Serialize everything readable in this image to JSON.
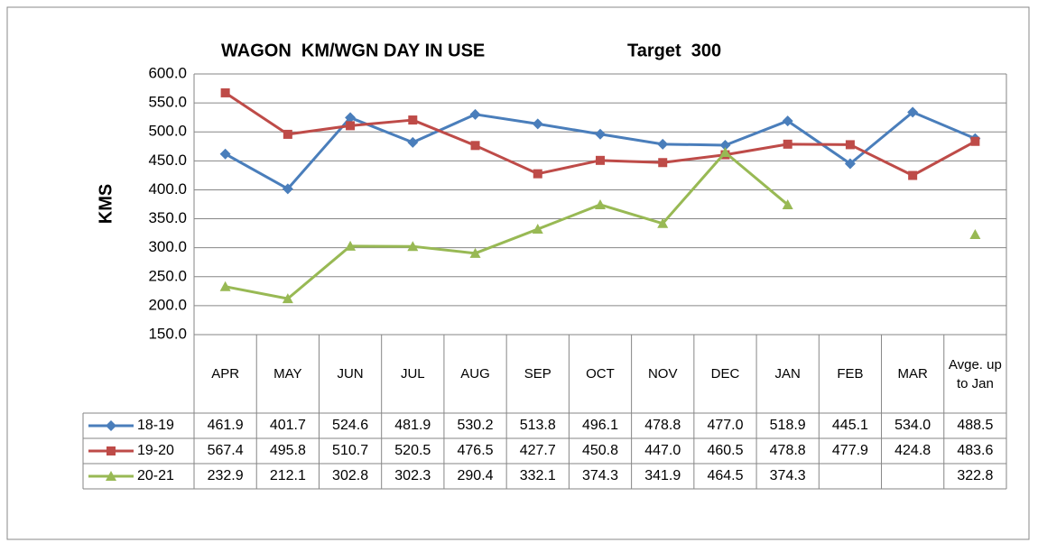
{
  "chart_data": {
    "type": "line",
    "title": "WAGON  KM/WGN DAY IN USE",
    "subtitle": "Target  300",
    "y_label": "KMS",
    "categories": [
      "APR",
      "MAY",
      "JUN",
      "JUL",
      "AUG",
      "SEP",
      "OCT",
      "NOV",
      "DEC",
      "JAN",
      "FEB",
      "MAR",
      "Avge. up to Jan"
    ],
    "ylim": [
      150,
      600
    ],
    "yticks": [
      {
        "value": 150,
        "label": "150.0"
      },
      {
        "value": 200,
        "label": "200.0"
      },
      {
        "value": 250,
        "label": "250.0"
      },
      {
        "value": 300,
        "label": "300.0"
      },
      {
        "value": 350,
        "label": "350.0"
      },
      {
        "value": 400,
        "label": "400.0"
      },
      {
        "value": 450,
        "label": "450.0"
      },
      {
        "value": 500,
        "label": "500.0"
      },
      {
        "value": 550,
        "label": "550.0"
      },
      {
        "value": 600,
        "label": "600.0"
      }
    ],
    "grid": true,
    "series": [
      {
        "name": "18-19",
        "color": "#4a7ebb",
        "marker": "diamond",
        "values": [
          461.9,
          401.7,
          524.6,
          481.9,
          530.2,
          513.8,
          496.1,
          478.8,
          477,
          518.9,
          445.1,
          534,
          488.5
        ],
        "value_labels": [
          "461.9",
          "401.7",
          "524.6",
          "481.9",
          "530.2",
          "513.8",
          "496.1",
          "478.8",
          "477.0",
          "518.9",
          "445.1",
          "534.0",
          "488.5"
        ]
      },
      {
        "name": "19-20",
        "color": "#be4b48",
        "marker": "square",
        "values": [
          567.4,
          495.8,
          510.7,
          520.5,
          476.5,
          427.7,
          450.8,
          447,
          460.5,
          478.8,
          477.9,
          424.8,
          483.6
        ],
        "value_labels": [
          "567.4",
          "495.8",
          "510.7",
          "520.5",
          "476.5",
          "427.7",
          "450.8",
          "447.0",
          "460.5",
          "478.8",
          "477.9",
          "424.8",
          "483.6"
        ]
      },
      {
        "name": "20-21",
        "color": "#98b954",
        "marker": "triangle",
        "values": [
          232.9,
          212.1,
          302.8,
          302.3,
          290.4,
          332.1,
          374.3,
          341.9,
          464.5,
          374.3,
          null,
          null,
          322.8
        ],
        "value_labels": [
          "232.9",
          "212.1",
          "302.8",
          "302.3",
          "290.4",
          "332.1",
          "374.3",
          "341.9",
          "464.5",
          "374.3",
          null,
          null,
          "322.8"
        ]
      }
    ]
  }
}
